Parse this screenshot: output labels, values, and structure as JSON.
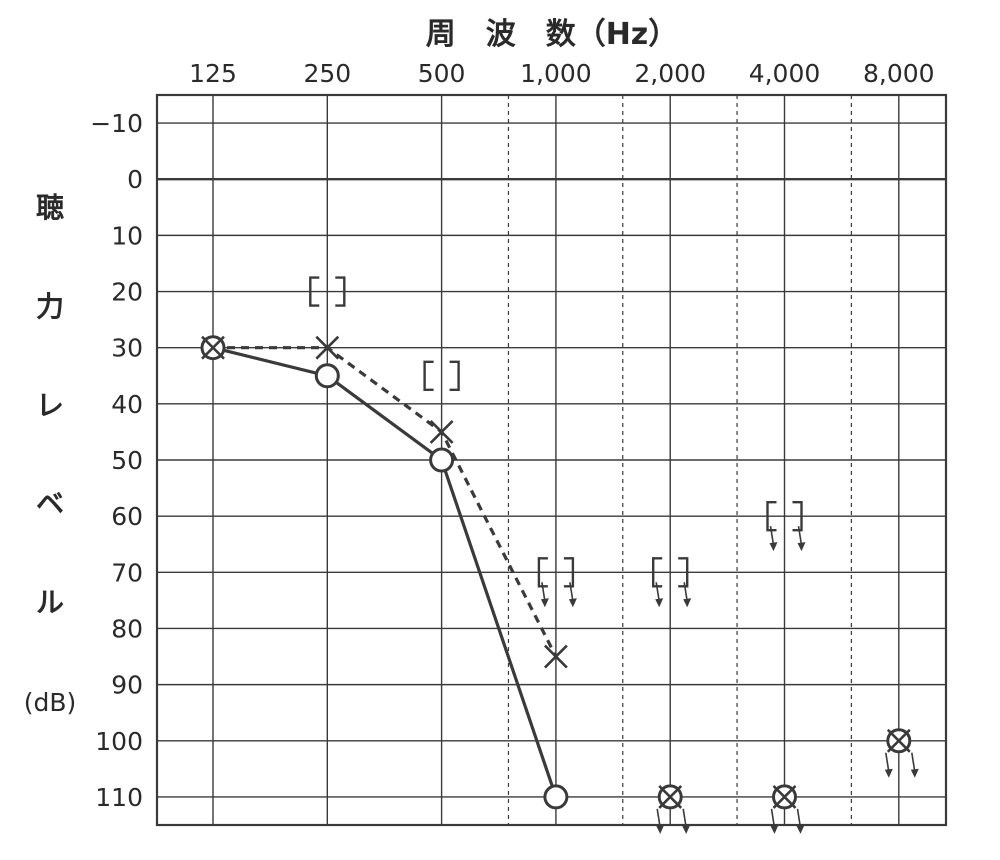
{
  "chart_data": {
    "type": "line",
    "title": "周　波　数（Hz）",
    "ylabel": "聴力レベル(dB)",
    "ylabel_chars": [
      "聴",
      "力",
      "レ",
      "ベ",
      "ル",
      "(dB)"
    ],
    "x_ticks": [
      "125",
      "250",
      "500",
      "1,000",
      "2,000",
      "4,000",
      "8,000"
    ],
    "y_ticks": [
      -10,
      0,
      10,
      20,
      30,
      40,
      50,
      60,
      70,
      80,
      90,
      100,
      110
    ],
    "y_tick_labels": [
      "−10",
      "0",
      "10",
      "20",
      "30",
      "40",
      "50",
      "60",
      "70",
      "80",
      "90",
      "100",
      "110"
    ],
    "ylim": [
      -15,
      115
    ],
    "x_scale": "log2 (octaves)",
    "grid": true,
    "series": [
      {
        "marker": "circle",
        "line": "solid",
        "points": [
          {
            "x": 125,
            "y": 30
          },
          {
            "x": 250,
            "y": 35
          },
          {
            "x": 500,
            "y": 50
          },
          {
            "x": 1000,
            "y": 110
          },
          {
            "x": 2000,
            "y": 110,
            "no_response": true
          },
          {
            "x": 4000,
            "y": 110,
            "no_response": true
          },
          {
            "x": 8000,
            "y": 100,
            "no_response": true
          }
        ],
        "connected_through": 1000
      },
      {
        "marker": "cross",
        "line": "dashed",
        "points": [
          {
            "x": 125,
            "y": 30
          },
          {
            "x": 250,
            "y": 30
          },
          {
            "x": 500,
            "y": 45
          },
          {
            "x": 1000,
            "y": 85
          },
          {
            "x": 2000,
            "y": 110,
            "no_response": true
          },
          {
            "x": 4000,
            "y": 110,
            "no_response": true
          },
          {
            "x": 8000,
            "y": 100,
            "no_response": true
          }
        ],
        "connected_through": 1000
      },
      {
        "marker": "bracket",
        "line": "none",
        "points": [
          {
            "x": 250,
            "y": 20
          },
          {
            "x": 500,
            "y": 35
          },
          {
            "x": 1000,
            "y": 70,
            "no_response": true
          },
          {
            "x": 2000,
            "y": 70,
            "no_response": true
          },
          {
            "x": 4000,
            "y": 60,
            "no_response": true
          }
        ]
      }
    ]
  }
}
